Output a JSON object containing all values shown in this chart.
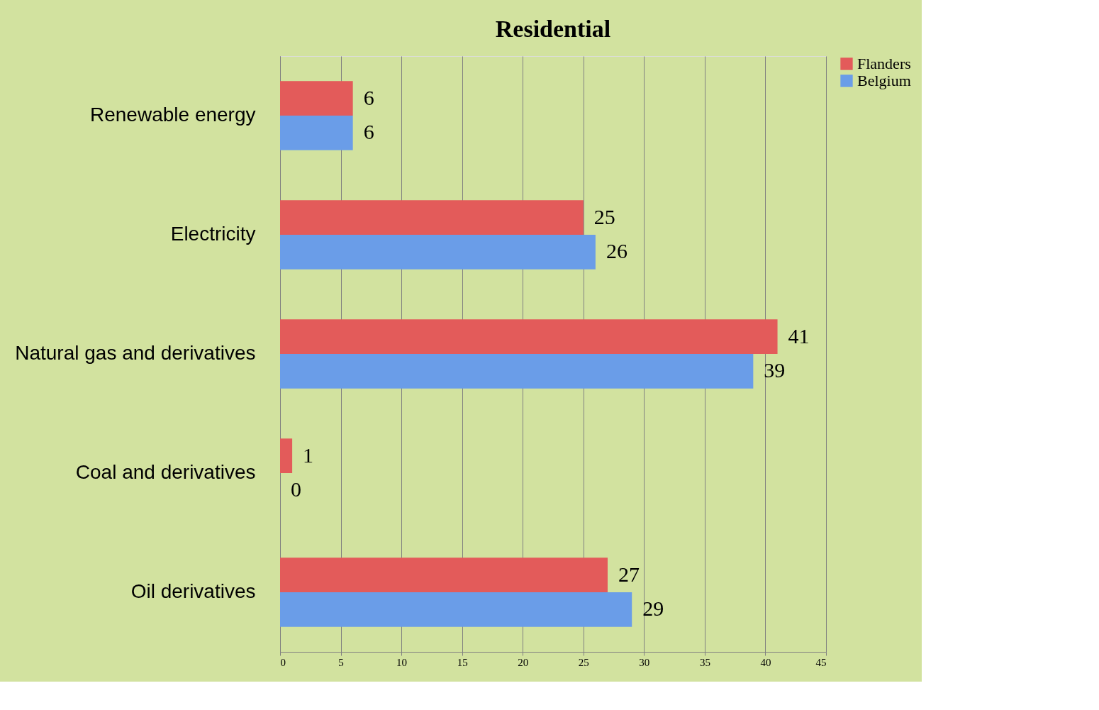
{
  "chart_data": {
    "type": "bar",
    "orientation": "horizontal",
    "title": "Residential",
    "categories": [
      "Renewable energy",
      "Electricity",
      "Natural gas and derivatives",
      "Coal and derivatives",
      "Oil derivatives"
    ],
    "series": [
      {
        "name": "Flanders",
        "color": "#e35b5a",
        "values": [
          6,
          25,
          41,
          1,
          27
        ]
      },
      {
        "name": "Belgium",
        "color": "#6a9de8",
        "values": [
          6,
          26,
          39,
          0,
          29
        ]
      }
    ],
    "xlim": [
      0,
      45
    ],
    "xticks": [
      0,
      5,
      10,
      15,
      20,
      25,
      30,
      35,
      40,
      45
    ],
    "grid": "x",
    "legend": "right",
    "data_labels": true
  }
}
